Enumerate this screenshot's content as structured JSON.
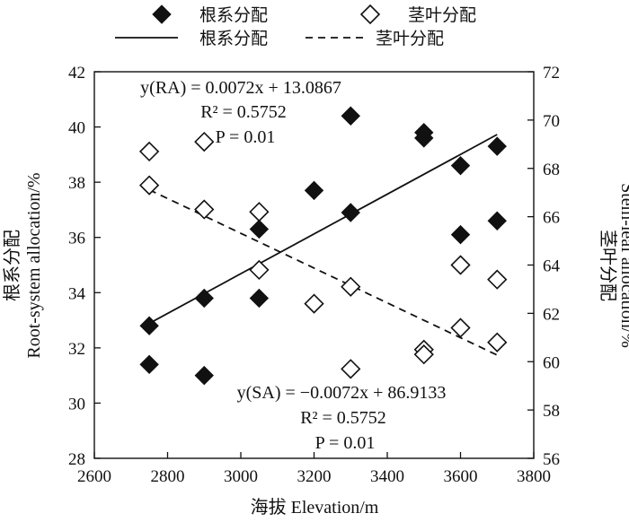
{
  "chart_data": {
    "type": "scatter",
    "xlabel": "海拔 Elevation/m",
    "ylabel_left_cn": "根系分配",
    "ylabel_left_en": "Root-system allocation/%",
    "ylabel_right_cn": "茎叶分配",
    "ylabel_right_en": "Stem-leaf allocation/%",
    "xlim": [
      2600,
      3800
    ],
    "ylim_left": [
      28,
      42
    ],
    "ylim_right": [
      56,
      72
    ],
    "x_ticks": [
      "2600",
      "2800",
      "3000",
      "3200",
      "3400",
      "3600",
      "3800"
    ],
    "y_left_ticks": [
      "28",
      "30",
      "32",
      "34",
      "36",
      "38",
      "40",
      "42"
    ],
    "y_right_ticks": [
      "56",
      "58",
      "60",
      "62",
      "64",
      "66",
      "68",
      "70",
      "72"
    ],
    "series": [
      {
        "name": "根系分配",
        "axis": "left",
        "marker": "filled-diamond",
        "points": [
          [
            2750,
            31.4
          ],
          [
            2750,
            32.8
          ],
          [
            2900,
            31.0
          ],
          [
            2900,
            33.8
          ],
          [
            3050,
            33.8
          ],
          [
            3050,
            36.3
          ],
          [
            3200,
            37.7
          ],
          [
            3300,
            36.9
          ],
          [
            3300,
            40.4
          ],
          [
            3500,
            39.6
          ],
          [
            3500,
            39.8
          ],
          [
            3600,
            36.1
          ],
          [
            3600,
            38.6
          ],
          [
            3700,
            36.6
          ],
          [
            3700,
            39.3
          ]
        ]
      },
      {
        "name": "茎叶分配",
        "axis": "right",
        "marker": "open-diamond",
        "points": [
          [
            2750,
            68.7
          ],
          [
            2750,
            67.3
          ],
          [
            2900,
            69.1
          ],
          [
            2900,
            66.3
          ],
          [
            3050,
            66.2
          ],
          [
            3050,
            63.8
          ],
          [
            3200,
            62.4
          ],
          [
            3300,
            63.1
          ],
          [
            3300,
            59.7
          ],
          [
            3500,
            60.5
          ],
          [
            3500,
            60.3
          ],
          [
            3600,
            64.0
          ],
          [
            3600,
            61.4
          ],
          [
            3700,
            63.4
          ],
          [
            3700,
            60.8
          ]
        ]
      }
    ],
    "fit_lines": [
      {
        "name": "根系分配",
        "axis": "left",
        "style": "solid",
        "slope": 0.0072,
        "intercept": 13.0867,
        "x_range": [
          2750,
          3700
        ],
        "equation": [
          "y(RA) = 0.0072x + 13.0867",
          "R² = 0.5752",
          "P = 0.01"
        ]
      },
      {
        "name": "茎叶分配",
        "axis": "right",
        "style": "dashed",
        "slope": -0.0072,
        "intercept": 86.9133,
        "x_range": [
          2750,
          3700
        ],
        "equation": [
          "y(SA) = −0.0072x + 86.9133",
          "R² = 0.5752",
          "P = 0.01"
        ]
      }
    ],
    "legend": [
      {
        "label": "根系分配",
        "marker": "filled-diamond"
      },
      {
        "label": "茎叶分配",
        "marker": "open-diamond"
      },
      {
        "label": "根系分配",
        "marker": "solid-line"
      },
      {
        "label": "茎叶分配",
        "marker": "dashed-line"
      }
    ]
  }
}
